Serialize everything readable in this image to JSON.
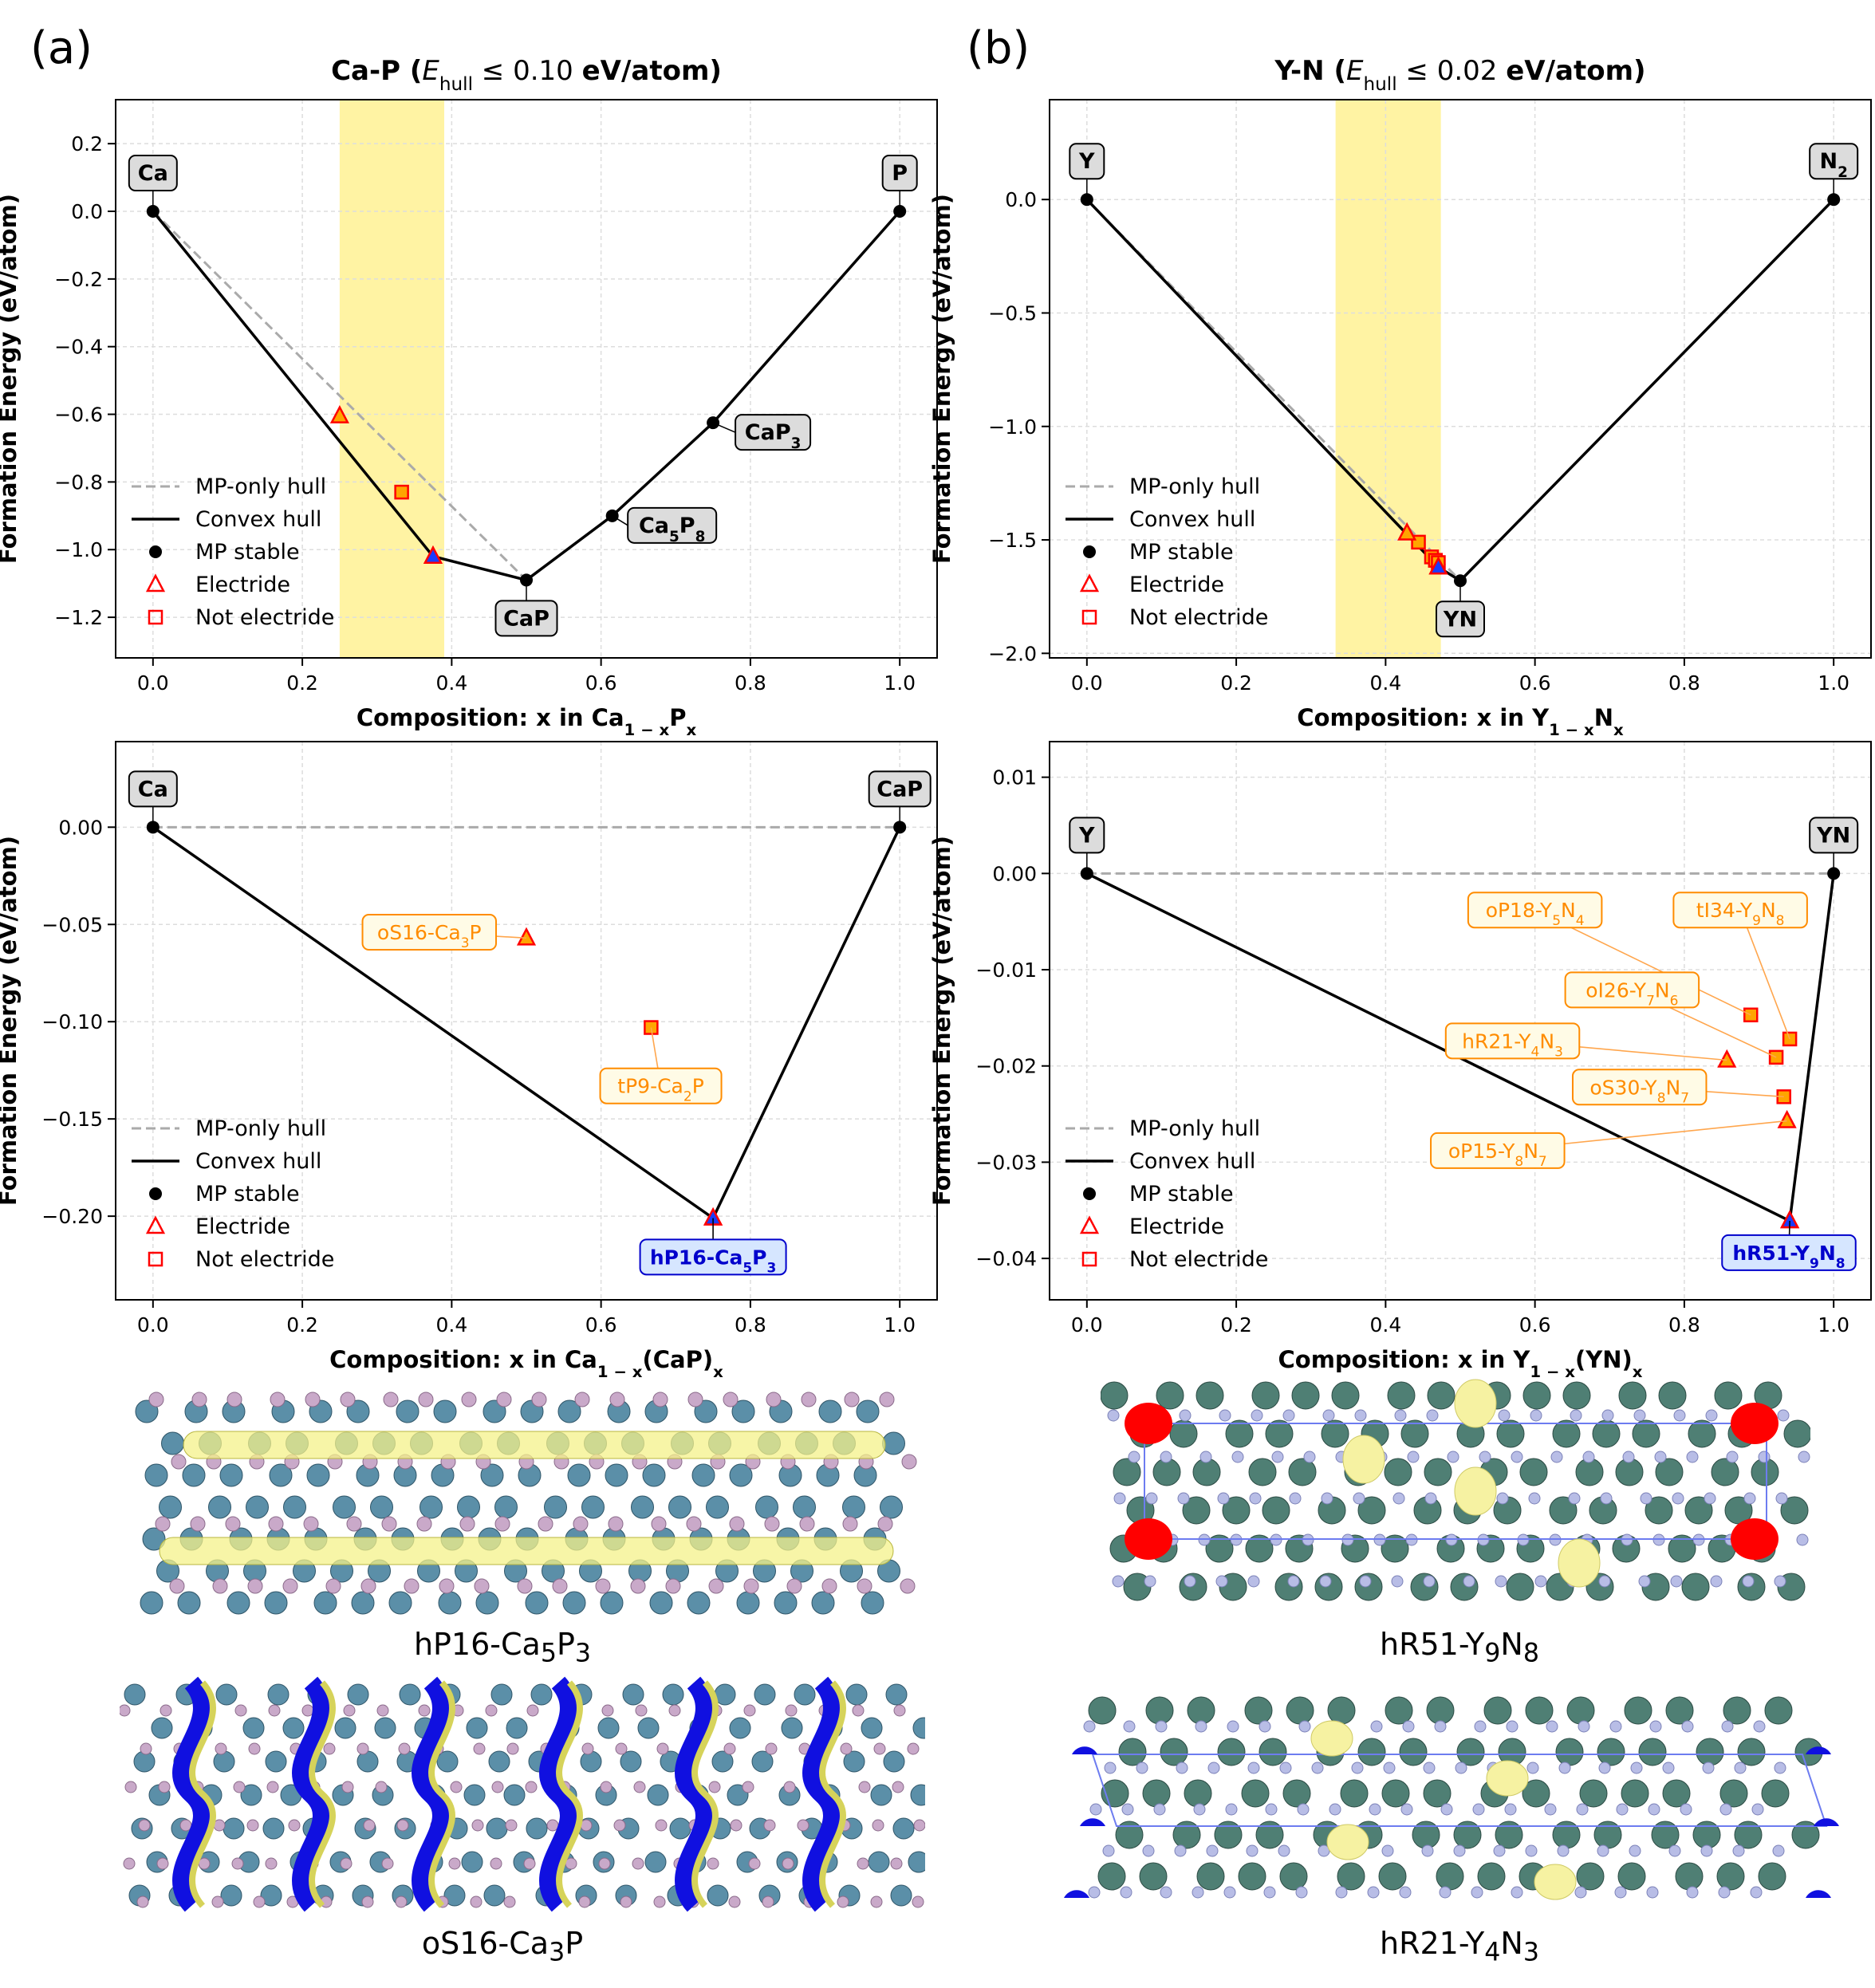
{
  "panels": {
    "a": "(a)",
    "b": "(b)"
  },
  "legend": [
    "MP-only hull",
    "Convex hull",
    "MP stable",
    "Electride",
    "Not electride"
  ],
  "captions": {
    "a1": {
      "pre": "hP16-Ca",
      "s1": "5",
      "mid": "P",
      "s2": "3"
    },
    "a2": {
      "pre": "oS16-Ca",
      "s1": "3",
      "mid": "P",
      "s2": ""
    },
    "b1": {
      "pre": "hR51-Y",
      "s1": "9",
      "mid": "N",
      "s2": "8"
    },
    "b2": {
      "pre": "hR21-Y",
      "s1": "4",
      "mid": "N",
      "s2": "3"
    }
  },
  "colors": {
    "electride": "#ff0000",
    "fill": "#ffa500",
    "highlight": "#fff3a3",
    "stable_label": "#0000cc",
    "orange_label": "#ff8c00"
  },
  "chart_data": [
    {
      "id": "ca-p-full",
      "type": "scatter",
      "title": {
        "pre": "Ca-P (",
        "e": "E",
        "esub": "hull",
        "rel": " ≤ 0.10 ",
        "unit": "eV/atom)"
      },
      "xlabel": {
        "pre": "Composition: x in Ca",
        "sub1": "1 − x",
        "mid": "P",
        "sub2": "x"
      },
      "ylabel": "Formation Energy (eV/atom)",
      "xlim": [
        -0.05,
        1.05
      ],
      "ylim": [
        -1.32,
        0.33
      ],
      "xticks": [
        0.0,
        0.2,
        0.4,
        0.6,
        0.8,
        1.0
      ],
      "yticks": [
        0.2,
        0.0,
        -0.2,
        -0.4,
        -0.6,
        -0.8,
        -1.0,
        -1.2
      ],
      "xtick_labels": [
        "0.0",
        "0.2",
        "0.4",
        "0.6",
        "0.8",
        "1.0"
      ],
      "ytick_labels": [
        "0.2",
        "0.0",
        "−0.2",
        "−0.4",
        "−0.6",
        "−0.8",
        "−1.0",
        "−1.2"
      ],
      "highlight_x": [
        0.25,
        0.39
      ],
      "mp_only_hull": [
        [
          0,
          0
        ],
        [
          0.5,
          -1.09
        ]
      ],
      "convex_hull": [
        [
          0,
          0
        ],
        [
          0.375,
          -1.02
        ],
        [
          0.5,
          -1.09
        ],
        [
          0.615,
          -0.9
        ],
        [
          0.75,
          -0.625
        ],
        [
          1.0,
          0
        ]
      ],
      "mp_stable": [
        [
          0,
          0
        ],
        [
          0.5,
          -1.09
        ],
        [
          0.615,
          -0.9
        ],
        [
          0.75,
          -0.625
        ],
        [
          1.0,
          0
        ]
      ],
      "electride": [
        [
          0.25,
          -0.605
        ],
        [
          0.375,
          -1.02
        ]
      ],
      "not_electride": [
        [
          0.333,
          -0.83
        ]
      ],
      "stable_new": [
        [
          0.375,
          -1.02
        ]
      ],
      "labels": [
        {
          "pt": [
            0,
            0
          ],
          "pos": "above",
          "text": "Ca",
          "sub": ""
        },
        {
          "pt": [
            1.0,
            0
          ],
          "pos": "above",
          "text": "P",
          "sub": ""
        },
        {
          "pt": [
            0.5,
            -1.09
          ],
          "pos": "below",
          "text": "CaP",
          "sub": ""
        },
        {
          "pt": [
            0.615,
            -0.9
          ],
          "pos": "right",
          "text": "Ca5P8",
          "parts": [
            "Ca",
            "5",
            "P",
            "8"
          ]
        },
        {
          "pt": [
            0.75,
            -0.625
          ],
          "pos": "right",
          "text": "CaP3",
          "parts": [
            "CaP",
            "3"
          ]
        }
      ]
    },
    {
      "id": "y-n-full",
      "type": "scatter",
      "title": {
        "pre": "Y-N (",
        "e": "E",
        "esub": "hull",
        "rel": " ≤ 0.02 ",
        "unit": "eV/atom)"
      },
      "xlabel": {
        "pre": "Composition: x in Y",
        "sub1": "1 − x",
        "mid": "N",
        "sub2": "x"
      },
      "ylabel": "Formation Energy (eV/atom)",
      "xlim": [
        -0.05,
        1.05
      ],
      "ylim": [
        -2.02,
        0.44
      ],
      "xticks": [
        0.0,
        0.2,
        0.4,
        0.6,
        0.8,
        1.0
      ],
      "yticks": [
        0.0,
        -0.5,
        -1.0,
        -1.5,
        -2.0
      ],
      "xtick_labels": [
        "0.0",
        "0.2",
        "0.4",
        "0.6",
        "0.8",
        "1.0"
      ],
      "ytick_labels": [
        "0.0",
        "−0.5",
        "−1.0",
        "−1.5",
        "−2.0"
      ],
      "highlight_x": [
        0.333,
        0.474
      ],
      "mp_only_hull": [
        [
          0,
          0
        ],
        [
          0.5,
          -1.68
        ]
      ],
      "convex_hull": [
        [
          0,
          0
        ],
        [
          0.4706,
          -1.62
        ],
        [
          0.5,
          -1.68
        ],
        [
          1.0,
          0
        ]
      ],
      "mp_stable": [
        [
          0,
          0
        ],
        [
          0.5,
          -1.68
        ],
        [
          1.0,
          0
        ]
      ],
      "electride": [
        [
          0.4286,
          -1.47
        ],
        [
          0.4706,
          -1.62
        ]
      ],
      "not_electride": [
        [
          0.444,
          -1.51
        ],
        [
          0.4615,
          -1.575
        ],
        [
          0.4667,
          -1.59
        ],
        [
          0.4706,
          -1.6
        ]
      ],
      "stable_new": [
        [
          0.4706,
          -1.62
        ]
      ],
      "labels": [
        {
          "pt": [
            0,
            0
          ],
          "pos": "above",
          "text": "Y",
          "sub": ""
        },
        {
          "pt": [
            1.0,
            0
          ],
          "pos": "above",
          "text": "N2",
          "parts": [
            "N",
            "2"
          ]
        },
        {
          "pt": [
            0.5,
            -1.68
          ],
          "pos": "below",
          "text": "YN",
          "sub": ""
        }
      ]
    },
    {
      "id": "ca-cap-zoom",
      "type": "scatter",
      "title": null,
      "xlabel": {
        "pre": "Composition: x in Ca",
        "sub1": "1 − x",
        "mid": "(CaP)",
        "sub2": "x"
      },
      "ylabel": "Formation Energy (eV/atom)",
      "xlim": [
        -0.05,
        1.05
      ],
      "ylim": [
        -0.243,
        0.044
      ],
      "xticks": [
        0.0,
        0.2,
        0.4,
        0.6,
        0.8,
        1.0
      ],
      "yticks": [
        0.0,
        -0.05,
        -0.1,
        -0.15,
        -0.2
      ],
      "xtick_labels": [
        "0.0",
        "0.2",
        "0.4",
        "0.6",
        "0.8",
        "1.0"
      ],
      "ytick_labels": [
        "0.00",
        "−0.05",
        "−0.10",
        "−0.15",
        "−0.20"
      ],
      "highlight_x": null,
      "mp_only_hull": [
        [
          0,
          0
        ],
        [
          1.0,
          0
        ]
      ],
      "convex_hull": [
        [
          0,
          0
        ],
        [
          0.75,
          -0.201
        ],
        [
          1.0,
          0
        ]
      ],
      "mp_stable": [
        [
          0,
          0
        ],
        [
          1.0,
          0
        ]
      ],
      "electride": [
        [
          0.5,
          -0.057
        ],
        [
          0.75,
          -0.201
        ]
      ],
      "not_electride": [
        [
          0.667,
          -0.103
        ]
      ],
      "stable_new": [
        [
          0.75,
          -0.201
        ]
      ],
      "labels": [
        {
          "pt": [
            0,
            0
          ],
          "pos": "above",
          "text": "Ca",
          "sub": ""
        },
        {
          "pt": [
            1.0,
            0
          ],
          "pos": "above",
          "text": "CaP",
          "sub": ""
        }
      ],
      "annotations": [
        {
          "pt": [
            0.5,
            -0.057
          ],
          "box": [
            0.37,
            -0.054
          ],
          "parts": [
            "oS16-Ca",
            "3",
            "P",
            ""
          ],
          "style": "orange"
        },
        {
          "pt": [
            0.667,
            -0.103
          ],
          "box": [
            0.68,
            -0.133
          ],
          "parts": [
            "tP9-Ca",
            "2",
            "P",
            ""
          ],
          "style": "orange"
        },
        {
          "pt": [
            0.75,
            -0.201
          ],
          "box": [
            0.75,
            -0.221
          ],
          "parts": [
            "hP16-Ca",
            "5",
            "P",
            "3"
          ],
          "style": "blue"
        }
      ]
    },
    {
      "id": "y-yn-zoom",
      "type": "scatter",
      "title": null,
      "xlabel": {
        "pre": "Composition: x in Y",
        "sub1": "1 − x",
        "mid": "(YN)",
        "sub2": "x"
      },
      "ylabel": "Formation Energy (eV/atom)",
      "xlim": [
        -0.05,
        1.05
      ],
      "ylim": [
        -0.0443,
        0.0137
      ],
      "xticks": [
        0.0,
        0.2,
        0.4,
        0.6,
        0.8,
        1.0
      ],
      "yticks": [
        0.01,
        0.0,
        -0.01,
        -0.02,
        -0.03,
        -0.04
      ],
      "xtick_labels": [
        "0.0",
        "0.2",
        "0.4",
        "0.6",
        "0.8",
        "1.0"
      ],
      "ytick_labels": [
        "0.01",
        "0.00",
        "−0.01",
        "−0.02",
        "−0.03",
        "−0.04"
      ],
      "highlight_x": null,
      "mp_only_hull": [
        [
          0,
          0
        ],
        [
          1.0,
          0
        ]
      ],
      "convex_hull": [
        [
          0,
          0
        ],
        [
          0.9412,
          -0.0361
        ],
        [
          1.0,
          0
        ]
      ],
      "mp_stable": [
        [
          0,
          0
        ],
        [
          1.0,
          0
        ]
      ],
      "electride": [
        [
          0.857,
          -0.0194
        ],
        [
          0.9375,
          -0.0257
        ],
        [
          0.9412,
          -0.0361
        ]
      ],
      "not_electride": [
        [
          0.889,
          -0.0147
        ],
        [
          0.923,
          -0.0191
        ],
        [
          0.9333,
          -0.0232
        ],
        [
          0.9412,
          -0.0172
        ]
      ],
      "stable_new": [
        [
          0.9412,
          -0.0361
        ]
      ],
      "labels": [
        {
          "pt": [
            0,
            0
          ],
          "pos": "above",
          "text": "Y",
          "sub": ""
        },
        {
          "pt": [
            1.0,
            0
          ],
          "pos": "above",
          "text": "YN",
          "sub": ""
        }
      ],
      "annotations": [
        {
          "pt": [
            0.889,
            -0.0147
          ],
          "box": [
            0.6,
            -0.0038
          ],
          "parts": [
            "oP18-Y",
            "5",
            "N",
            "4"
          ],
          "style": "orange"
        },
        {
          "pt": [
            0.9412,
            -0.0172
          ],
          "box": [
            0.875,
            -0.0038
          ],
          "parts": [
            "tI34-Y",
            "9",
            "N",
            "8"
          ],
          "style": "orange"
        },
        {
          "pt": [
            0.923,
            -0.0191
          ],
          "box": [
            0.73,
            -0.0121
          ],
          "parts": [
            "oI26-Y",
            "7",
            "N",
            "6"
          ],
          "style": "orange"
        },
        {
          "pt": [
            0.857,
            -0.0194
          ],
          "box": [
            0.57,
            -0.0174
          ],
          "parts": [
            "hR21-Y",
            "4",
            "N",
            "3"
          ],
          "style": "orange"
        },
        {
          "pt": [
            0.9333,
            -0.0232
          ],
          "box": [
            0.74,
            -0.0222
          ],
          "parts": [
            "oS30-Y",
            "8",
            "N",
            "7"
          ],
          "style": "orange"
        },
        {
          "pt": [
            0.9375,
            -0.0257
          ],
          "box": [
            0.55,
            -0.0288
          ],
          "parts": [
            "oP15-Y",
            "8",
            "N",
            "7"
          ],
          "style": "orange"
        },
        {
          "pt": [
            0.9412,
            -0.0361
          ],
          "box": [
            0.94,
            -0.0394
          ],
          "parts": [
            "hR51-Y",
            "9",
            "N",
            "8"
          ],
          "style": "blue"
        }
      ]
    }
  ]
}
